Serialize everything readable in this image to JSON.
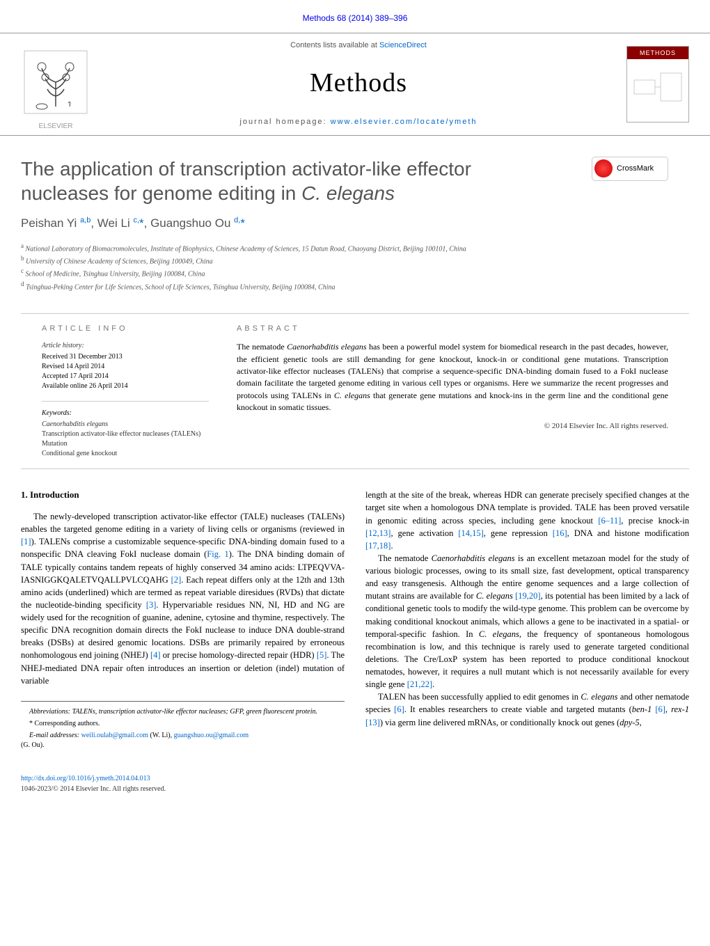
{
  "top_link": "Methods 68 (2014) 389–396",
  "header": {
    "contents_text": "Contents lists available at ",
    "contents_link": "ScienceDirect",
    "journal_name": "Methods",
    "homepage_label": "journal homepage: ",
    "homepage_url": "www.elsevier.com/locate/ymeth",
    "publisher": "ELSEVIER",
    "cover_banner": "METHODS"
  },
  "crossmark": "CrossMark",
  "title": "The application of transcription activator-like effector nucleases for genome editing in C. elegans",
  "authors_html": "Peishan Yi <sup>a,b</sup>, Wei Li <sup>c,</sup><span class='corr'>*</span>, Guangshuo Ou <sup>d,</sup><span class='corr'>*</span>",
  "affiliations": [
    "a National Laboratory of Biomacromolecules, Institute of Biophysics, Chinese Academy of Sciences, 15 Datun Road, Chaoyang District, Beijing 100101, China",
    "b University of Chinese Academy of Sciences, Beijing 100049, China",
    "c School of Medicine, Tsinghua University, Beijing 100084, China",
    "d Tsinghua-Peking Center for Life Sciences, School of Life Sciences, Tsinghua University, Beijing 100084, China"
  ],
  "article_info": {
    "heading": "ARTICLE INFO",
    "history_label": "Article history:",
    "received": "Received 31 December 2013",
    "revised": "Revised 14 April 2014",
    "accepted": "Accepted 17 April 2014",
    "available": "Available online 26 April 2014",
    "keywords_label": "Keywords:",
    "keywords": [
      "Caenorhabditis elegans",
      "Transcription activator-like effector nucleases (TALENs)",
      "Mutation",
      "Conditional gene knockout"
    ]
  },
  "abstract": {
    "heading": "ABSTRACT",
    "text": "The nematode Caenorhabditis elegans has been a powerful model system for biomedical research in the past decades, however, the efficient genetic tools are still demanding for gene knockout, knock-in or conditional gene mutations. Transcription activator-like effector nucleases (TALENs) that comprise a sequence-specific DNA-binding domain fused to a FokI nuclease domain facilitate the targeted genome editing in various cell types or organisms. Here we summarize the recent progresses and protocols using TALENs in C. elegans that generate gene mutations and knock-ins in the germ line and the conditional gene knockout in somatic tissues.",
    "copyright": "© 2014 Elsevier Inc. All rights reserved."
  },
  "section1": {
    "heading": "1. Introduction",
    "col1_p1": "The newly-developed transcription activator-like effector (TALE) nucleases (TALENs) enables the targeted genome editing in a variety of living cells or organisms (reviewed in [1]). TALENs comprise a customizable sequence-specific DNA-binding domain fused to a nonspecific DNA cleaving FokI nuclease domain (Fig. 1). The DNA binding domain of TALE typically contains tandem repeats of highly conserved 34 amino acids: LTPEQVVA-IASNIGGKQALETVQALLPVLCQAHG [2]. Each repeat differs only at the 12th and 13th amino acids (underlined) which are termed as repeat variable diresidues (RVDs) that dictate the nucleotide-binding specificity [3]. Hypervariable residues NN, NI, HD and NG are widely used for the recognition of guanine, adenine, cytosine and thymine, respectively. The specific DNA recognition domain directs the FokI nuclease to induce DNA double-strand breaks (DSBs) at desired genomic locations. DSBs are primarily repaired by erroneous nonhomologous end joining (NHEJ) [4] or precise homology-directed repair (HDR) [5]. The NHEJ-mediated DNA repair often introduces an insertion or deletion (indel) mutation of variable",
    "col2_p1": "length at the site of the break, whereas HDR can generate precisely specified changes at the target site when a homologous DNA template is provided. TALE has been proved versatile in genomic editing across species, including gene knockout [6–11], precise knock-in [12,13], gene activation [14,15], gene repression [16], DNA and histone modification [17,18].",
    "col2_p2": "The nematode Caenorhabditis elegans is an excellent metazoan model for the study of various biologic processes, owing to its small size, fast development, optical transparency and easy transgenesis. Although the entire genome sequences and a large collection of mutant strains are available for C. elegans [19,20], its potential has been limited by a lack of conditional genetic tools to modify the wild-type genome. This problem can be overcome by making conditional knockout animals, which allows a gene to be inactivated in a spatial- or temporal-specific fashion. In C. elegans, the frequency of spontaneous homologous recombination is low, and this technique is rarely used to generate targeted conditional deletions. The Cre/LoxP system has been reported to produce conditional knockout nematodes, however, it requires a null mutant which is not necessarily available for every single gene [21,22].",
    "col2_p3": "TALEN has been successfully applied to edit genomes in C. elegans and other nematode species [6]. It enables researchers to create viable and targeted mutants (ben-1 [6], rex-1 [13]) via germ line delivered mRNAs, or conditionally knock out genes (dpy-5,"
  },
  "footnotes": {
    "abbrev": "Abbreviations: TALENs, transcription activator-like effector nucleases; GFP, green fluorescent protein.",
    "corr": "* Corresponding authors.",
    "email_label": "E-mail addresses: ",
    "email1": "weili.oulab@gmail.com",
    "email1_who": " (W. Li), ",
    "email2": "guangshuo.ou@gmail.com",
    "email2_who": " (G. Ou)."
  },
  "footer": {
    "doi": "http://dx.doi.org/10.1016/j.ymeth.2014.04.013",
    "issn": "1046-2023/© 2014 Elsevier Inc. All rights reserved."
  },
  "colors": {
    "link": "#0066cc",
    "heading_gray": "#555555",
    "text": "#000000",
    "border": "#cccccc",
    "dark_red": "#8B0000"
  }
}
